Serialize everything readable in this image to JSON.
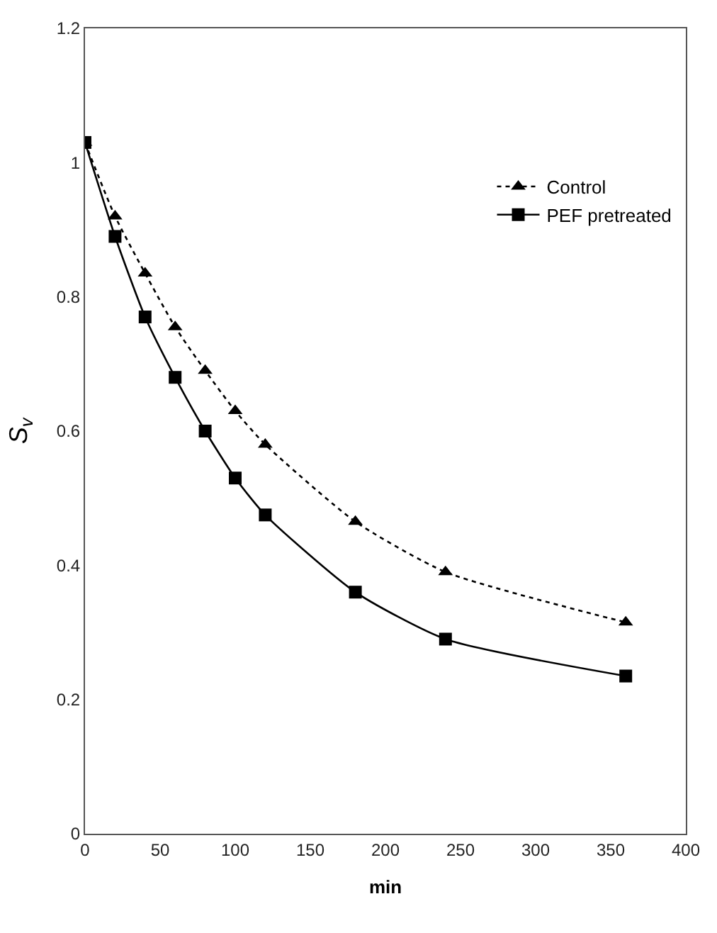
{
  "chart_data": {
    "type": "line",
    "xlabel": "min",
    "ylabel": "S$_{v}$",
    "x": [
      0,
      20,
      40,
      60,
      80,
      100,
      120,
      180,
      240,
      360
    ],
    "series": [
      {
        "name": "Control",
        "color": "#000000",
        "marker": "triangle",
        "line_style": "dotted",
        "values": [
          1.03,
          0.92,
          0.835,
          0.755,
          0.69,
          0.63,
          0.58,
          0.465,
          0.39,
          0.315
        ]
      },
      {
        "name": "PEF pretreated",
        "color": "#000000",
        "marker": "square",
        "line_style": "solid",
        "values": [
          1.03,
          0.89,
          0.77,
          0.68,
          0.6,
          0.53,
          0.475,
          0.36,
          0.29,
          0.235
        ]
      }
    ],
    "xlim": [
      0,
      400
    ],
    "xticks": [
      0,
      50,
      100,
      150,
      200,
      250,
      300,
      350,
      400
    ],
    "ylim": [
      0,
      1.2
    ],
    "yticks": [
      0,
      0.2,
      0.4,
      0.6,
      0.8,
      1,
      1.2
    ],
    "legend": "top right"
  }
}
